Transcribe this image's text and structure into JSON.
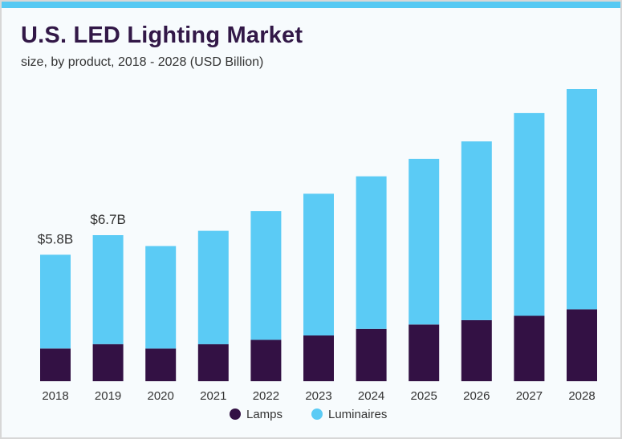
{
  "chart_data": {
    "type": "bar",
    "stacked": true,
    "title": "U.S. LED Lighting Market",
    "subtitle": "size, by product, 2018 - 2028 (USD Billion)",
    "xlabel": "",
    "ylabel": "",
    "categories": [
      "2018",
      "2019",
      "2020",
      "2021",
      "2022",
      "2023",
      "2024",
      "2025",
      "2026",
      "2027",
      "2028"
    ],
    "series": [
      {
        "name": "Lamps",
        "color": "#331144",
        "values": [
          1.5,
          1.7,
          1.5,
          1.7,
          1.9,
          2.1,
          2.4,
          2.6,
          2.8,
          3.0,
          3.3
        ]
      },
      {
        "name": "Luminaires",
        "color": "#5bcbf5",
        "values": [
          4.3,
          5.0,
          4.7,
          5.2,
          5.9,
          6.5,
          7.0,
          7.6,
          8.2,
          9.3,
          10.1
        ]
      }
    ],
    "totals": [
      5.8,
      6.7,
      6.2,
      6.9,
      7.8,
      8.6,
      9.4,
      10.2,
      11.0,
      12.3,
      13.4
    ],
    "data_labels": [
      {
        "category": "2018",
        "text": "$5.8B"
      },
      {
        "category": "2019",
        "text": "$6.7B"
      }
    ],
    "ylim": [
      0,
      13.4
    ],
    "grid": false,
    "legend_position": "bottom"
  },
  "colors": {
    "accent": "#56c9f3",
    "title": "#321847",
    "lamps": "#331144",
    "luminaires": "#5bcbf5"
  }
}
